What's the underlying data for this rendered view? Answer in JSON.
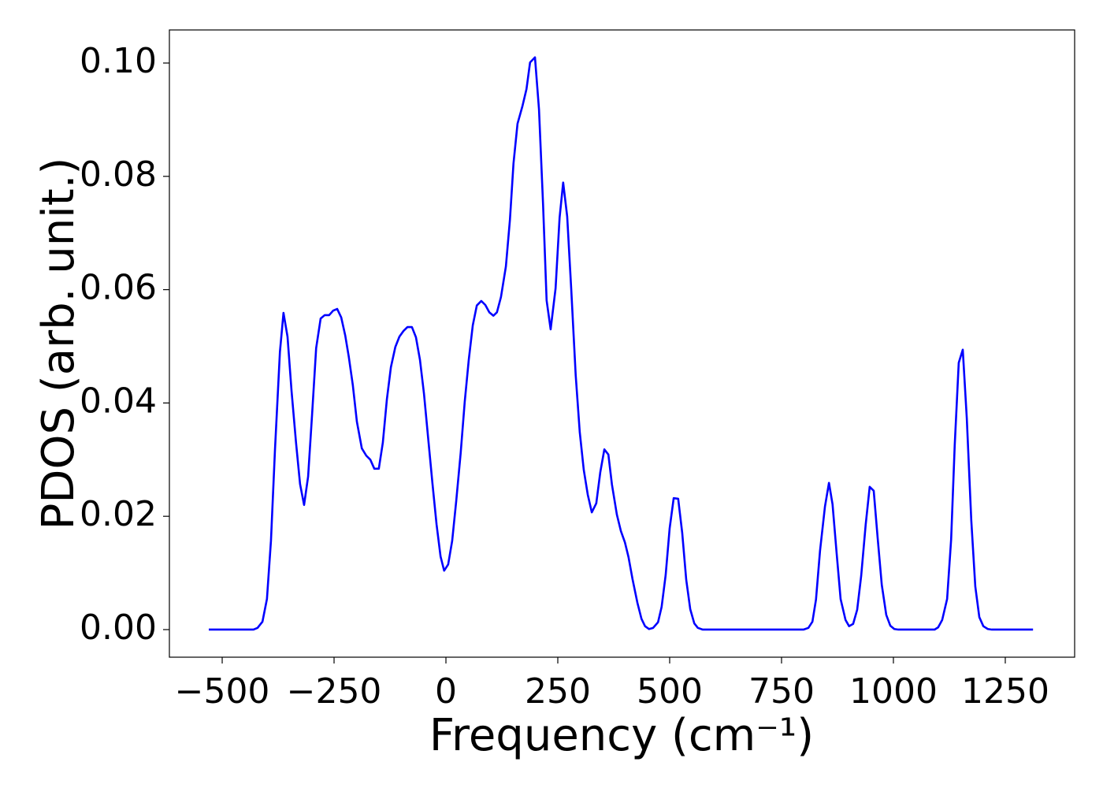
{
  "chart_data": {
    "type": "line",
    "x_label": "Frequency (cm⁻¹)",
    "y_label": "PDOS (arb. unit.)",
    "color": "#0000ff",
    "x": [
      -530,
      -430,
      -421,
      -410,
      -400,
      -391,
      -382,
      -371,
      -363,
      -354,
      -345,
      -335,
      -326,
      -317,
      -308,
      -299,
      -290,
      -280,
      -271,
      -261,
      -252,
      -243,
      -234,
      -225,
      -217,
      -208,
      -199,
      -188,
      -178,
      -169,
      -160,
      -150,
      -141,
      -132,
      -123,
      -113,
      -104,
      -95,
      -86,
      -76,
      -67,
      -58,
      -49,
      -39,
      -30,
      -21,
      -12,
      -4,
      5,
      14,
      23,
      33,
      42,
      51,
      60,
      69,
      79,
      88,
      97,
      106,
      114,
      123,
      134,
      143,
      151,
      160,
      171,
      180,
      188,
      199,
      208,
      217,
      225,
      234,
      245,
      254,
      262,
      271,
      280,
      290,
      299,
      308,
      317,
      326,
      336,
      345,
      354,
      363,
      371,
      382,
      391,
      400,
      408,
      417,
      428,
      437,
      445,
      454,
      463,
      474,
      482,
      491,
      500,
      509,
      519,
      528,
      537,
      546,
      555,
      563,
      574,
      799,
      810,
      819,
      827,
      836,
      847,
      856,
      864,
      873,
      882,
      893,
      901,
      910,
      919,
      928,
      938,
      947,
      956,
      965,
      974,
      984,
      993,
      1002,
      1011,
      1092,
      1100,
      1109,
      1120,
      1129,
      1137,
      1146,
      1155,
      1164,
      1174,
      1183,
      1192,
      1201,
      1211,
      1220,
      1312
    ],
    "values": [
      0,
      0,
      0.0003,
      0.0014,
      0.0054,
      0.0157,
      0.0318,
      0.049,
      0.0559,
      0.0517,
      0.0421,
      0.033,
      0.0257,
      0.022,
      0.027,
      0.0381,
      0.0497,
      0.0549,
      0.0555,
      0.0555,
      0.0563,
      0.0566,
      0.0551,
      0.0519,
      0.0481,
      0.0431,
      0.0367,
      0.032,
      0.0307,
      0.03,
      0.0284,
      0.0284,
      0.033,
      0.0406,
      0.0463,
      0.0499,
      0.0517,
      0.0527,
      0.0534,
      0.0534,
      0.0516,
      0.0476,
      0.0416,
      0.0332,
      0.0257,
      0.0186,
      0.0129,
      0.0104,
      0.0115,
      0.0157,
      0.0227,
      0.0312,
      0.0402,
      0.0476,
      0.0537,
      0.0572,
      0.058,
      0.0573,
      0.056,
      0.0554,
      0.056,
      0.0587,
      0.0641,
      0.0723,
      0.0823,
      0.0893,
      0.0924,
      0.0954,
      0.1001,
      0.101,
      0.0918,
      0.0752,
      0.0581,
      0.053,
      0.0602,
      0.0727,
      0.0789,
      0.0729,
      0.0601,
      0.0449,
      0.0349,
      0.0282,
      0.0238,
      0.0207,
      0.0223,
      0.0278,
      0.0318,
      0.0309,
      0.0256,
      0.0203,
      0.0174,
      0.0154,
      0.0128,
      0.0089,
      0.0047,
      0.0019,
      0.0006,
      0.0001,
      0.0003,
      0.0013,
      0.004,
      0.0096,
      0.0179,
      0.0232,
      0.0231,
      0.0171,
      0.0088,
      0.0036,
      0.0011,
      0.0003,
      0,
      0,
      0.0003,
      0.0014,
      0.0053,
      0.0139,
      0.0217,
      0.0259,
      0.0221,
      0.0136,
      0.0054,
      0.0017,
      0.0006,
      0.001,
      0.0035,
      0.0095,
      0.0185,
      0.0252,
      0.0245,
      0.016,
      0.0079,
      0.0026,
      0.0007,
      0.0001,
      0,
      0,
      0.0004,
      0.0017,
      0.0054,
      0.0159,
      0.0325,
      0.0471,
      0.0494,
      0.0373,
      0.0193,
      0.0076,
      0.0022,
      0.0006,
      0.0001,
      0,
      0
    ],
    "xlim": [
      -618,
      1405
    ],
    "ylim": [
      -0.00487,
      0.10584
    ],
    "xticks": [
      {
        "value": -500,
        "label": "−500"
      },
      {
        "value": -250,
        "label": "−250"
      },
      0,
      250,
      500,
      750,
      1000,
      1250
    ],
    "yticks": [
      {
        "value": 0,
        "label": "0.00"
      },
      {
        "value": 0.02,
        "label": "0.02"
      },
      {
        "value": 0.04,
        "label": "0.04"
      },
      {
        "value": 0.06,
        "label": "0.06"
      },
      {
        "value": 0.08,
        "label": "0.08"
      },
      {
        "value": 0.1,
        "label": "0.10"
      }
    ],
    "grid": false
  }
}
